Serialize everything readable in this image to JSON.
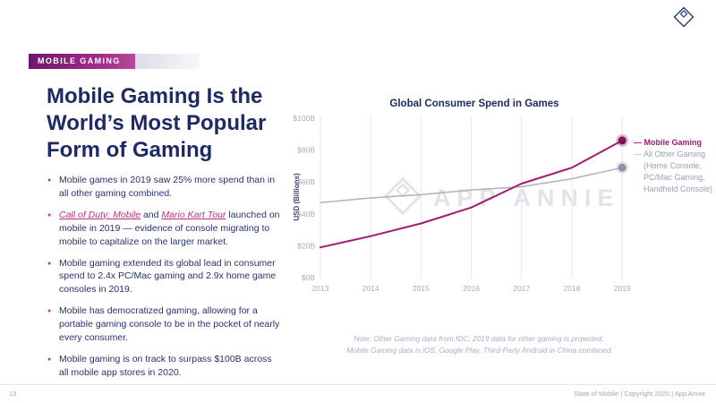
{
  "header": {
    "kicker": "MOBILE GAMING"
  },
  "logo_name": "app-annie-diamond-logo",
  "left": {
    "title_lines": [
      "Mobile Gaming Is the",
      "World’s Most Popular",
      "Form of Gaming"
    ],
    "bullets": [
      {
        "segments": [
          {
            "t": "Mobile games in 2019 saw 25% more spend than in all other gaming combined.",
            "link": false
          }
        ]
      },
      {
        "segments": [
          {
            "t": "Call of Duty: Mobile",
            "link": true
          },
          {
            "t": " and ",
            "link": false
          },
          {
            "t": "Mario Kart Tour",
            "link": true
          },
          {
            "t": " launched on mobile in 2019 — evidence of console migrating to mobile to capitalize on the larger market.",
            "link": false
          }
        ]
      },
      {
        "segments": [
          {
            "t": "Mobile gaming extended its global lead in consumer spend to 2.4x PC/Mac gaming and 2.9x home game consoles in 2019.",
            "link": false
          }
        ]
      },
      {
        "segments": [
          {
            "t": "Mobile has democratized gaming, allowing for a portable gaming console to be in the pocket of nearly every consumer.",
            "link": false
          }
        ]
      },
      {
        "segments": [
          {
            "t": "Mobile gaming is on track to surpass $100B across all mobile app stores in 2020.",
            "link": false
          }
        ]
      }
    ]
  },
  "chart_data": {
    "type": "line",
    "title": "Global Consumer Spend in Games",
    "ylabel": "USD (Billions)",
    "x": [
      2013,
      2014,
      2015,
      2016,
      2017,
      2018,
      2019
    ],
    "series": [
      {
        "name": "Mobile Gaming",
        "color": "#a21c6e",
        "values": [
          19,
          26,
          34,
          44,
          59,
          69,
          86
        ]
      },
      {
        "name": "All Other Gaming",
        "color": "#aeb2c0",
        "values": [
          47,
          50,
          52,
          55,
          57,
          62,
          69
        ]
      }
    ],
    "ylim": [
      0,
      100
    ],
    "yticks": [
      "$0B",
      "$20B",
      "$40B",
      "$60B",
      "$80B",
      "$100B"
    ],
    "grid": "vertical",
    "legend_position": "right"
  },
  "legend": {
    "mobile": "Mobile Gaming",
    "other": "All Other Gaming",
    "other_sub": [
      "(Home Console,",
      "PC/Mac Gaming,",
      "Handheld Console)"
    ]
  },
  "watermark": "APP ANNIE",
  "note_lines": [
    "Note: Other Gaming data from IDC; 2019 data for other gaming is projected,",
    "Mobile Gaming data is iOS, Google Play, Third-Party Android in China combined"
  ],
  "footer": {
    "page_number": "13",
    "right_text": "State of Mobile  |  Copyright 2020  |  App Annie"
  }
}
